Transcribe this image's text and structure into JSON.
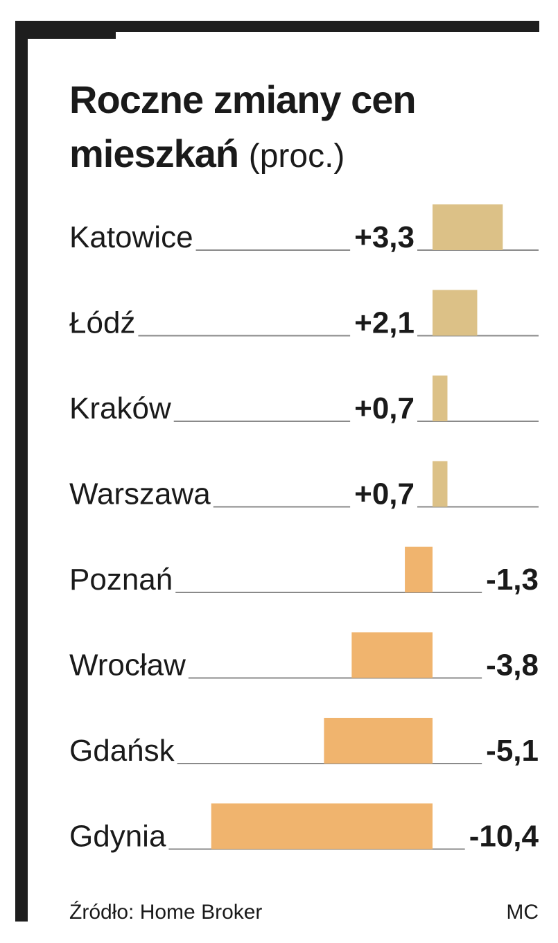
{
  "chart_data": {
    "type": "bar",
    "title_line1": "Roczne zmiany cen",
    "title_line2": "mieszkań",
    "unit": "(proc.)",
    "categories": [
      "Katowice",
      "Łódź",
      "Kraków",
      "Warszawa",
      "Poznań",
      "Wrocław",
      "Gdańsk",
      "Gdynia"
    ],
    "values": [
      3.3,
      2.1,
      0.7,
      0.7,
      -1.3,
      -3.8,
      -5.1,
      -10.4
    ],
    "value_labels": [
      "+3,3",
      "+2,1",
      "+0,7",
      "+0,7",
      "-1,3",
      "-3,8",
      "-5,1",
      "-10,4"
    ],
    "colors": {
      "positive": "#dcc187",
      "negative": "#f0b46e",
      "rule": "#8a8a8a",
      "frame": "#1e1e1e"
    }
  },
  "footer": {
    "source": "Źródło: Home Broker",
    "credit": "MC"
  }
}
